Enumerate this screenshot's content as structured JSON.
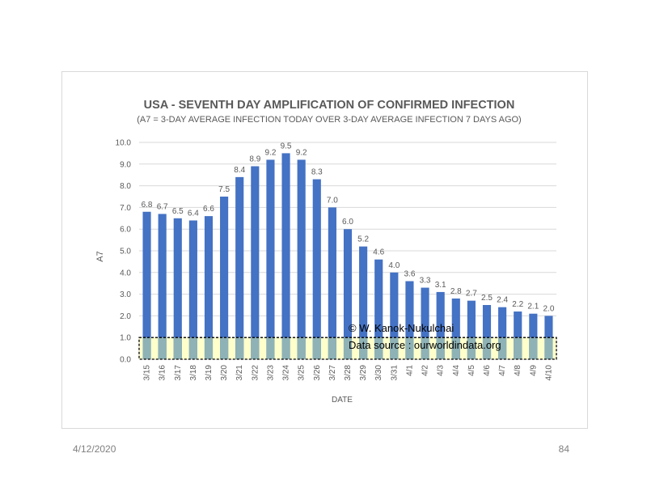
{
  "slide": {
    "date": "4/12/2020",
    "page_number": "84",
    "credit": "© W. Kanok-Nukulchai",
    "source": "Data source : ourworldindata.org"
  },
  "colors": {
    "bar": "#4472c4",
    "band_fill": "#ffffcc",
    "band_overlap": "#8eb2b6",
    "grid": "#d9d9d9",
    "text": "#595959"
  },
  "chart_data": {
    "type": "bar",
    "title": "USA - SEVENTH DAY AMPLIFICATION OF CONFIRMED INFECTION",
    "subtitle": "(A7 = 3-DAY AVERAGE INFECTION TODAY OVER 3-DAY AVERAGE INFECTION 7 DAYS AGO)",
    "xlabel": "DATE",
    "ylabel": "A7",
    "ylim": [
      0,
      10
    ],
    "yticks": [
      "0.0",
      "1.0",
      "2.0",
      "3.0",
      "4.0",
      "5.0",
      "6.0",
      "7.0",
      "8.0",
      "9.0",
      "10.0"
    ],
    "grid": true,
    "categories": [
      "3/15",
      "3/16",
      "3/17",
      "3/18",
      "3/19",
      "3/20",
      "3/21",
      "3/22",
      "3/23",
      "3/24",
      "3/25",
      "3/26",
      "3/27",
      "3/28",
      "3/29",
      "3/30",
      "3/31",
      "4/1",
      "4/2",
      "4/3",
      "4/4",
      "4/5",
      "4/6",
      "4/7",
      "4/8",
      "4/9",
      "4/10"
    ],
    "values": [
      6.8,
      6.7,
      6.5,
      6.4,
      6.6,
      7.5,
      8.4,
      8.9,
      9.2,
      9.5,
      9.2,
      8.3,
      7.0,
      6.0,
      5.2,
      4.6,
      4.0,
      3.6,
      3.3,
      3.1,
      2.8,
      2.7,
      2.5,
      2.4,
      2.2,
      2.1,
      2.0
    ],
    "labels": [
      "6.8",
      "6.7",
      "6.5",
      "6.4",
      "6.6",
      "7.5",
      "8.4",
      "8.9",
      "9.2",
      "9.5",
      "9.2",
      "8.3",
      "7.0",
      "6.0",
      "5.2",
      "4.6",
      "4.0",
      "3.6",
      "3.3",
      "3.1",
      "2.8",
      "2.7",
      "2.5",
      "2.4",
      "2.2",
      "2.1",
      "2.0"
    ],
    "threshold_band": [
      0,
      1
    ]
  }
}
